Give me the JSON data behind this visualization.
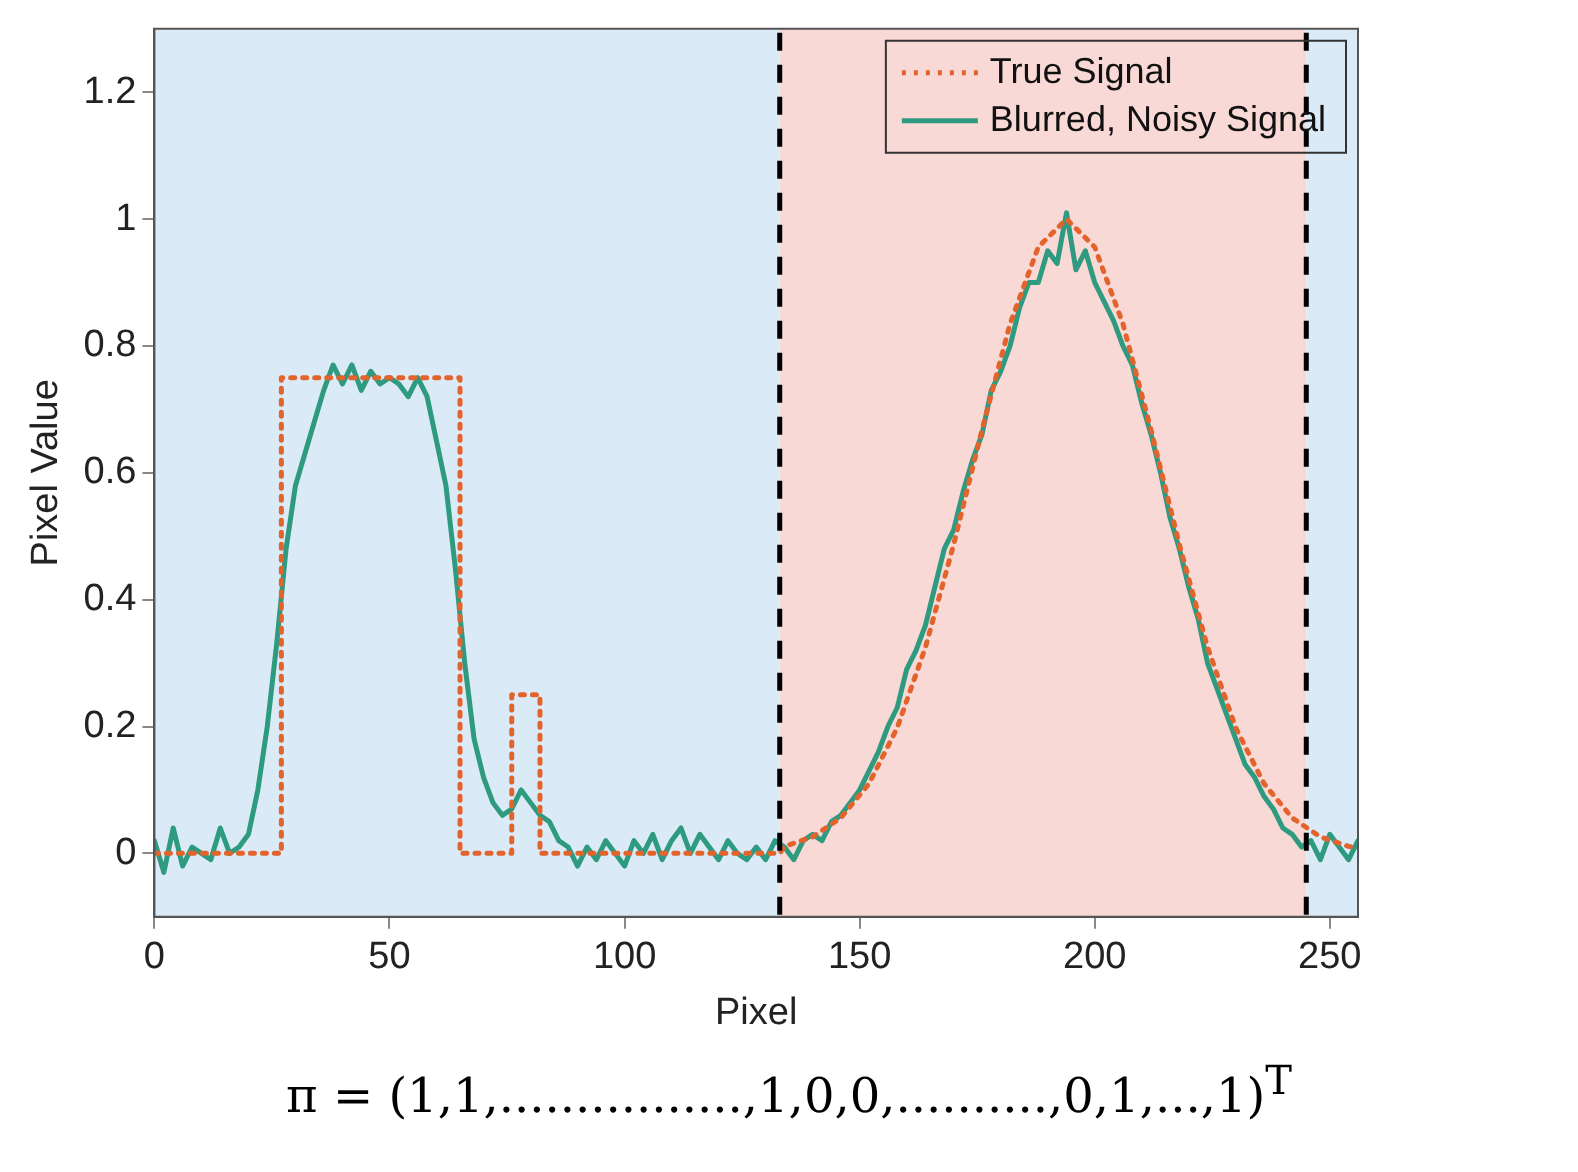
{
  "chart_data": {
    "type": "line",
    "xlabel": "Pixel",
    "ylabel": "Pixel Value",
    "xlim": [
      0,
      256
    ],
    "ylim": [
      -0.1,
      1.3
    ],
    "xticks": [
      0,
      50,
      100,
      150,
      200,
      250
    ],
    "yticks": [
      0,
      0.2,
      0.4,
      0.6,
      0.8,
      1,
      1.2
    ],
    "grid": false,
    "legend": "top right",
    "marker": "none",
    "series": [
      {
        "name": "True Signal",
        "color": "#e2632c",
        "line_style": "dotted",
        "x": [
          0,
          27,
          27,
          65,
          65,
          76,
          76,
          82,
          82,
          133,
          134,
          140,
          146,
          152,
          158,
          164,
          170,
          176,
          182,
          188,
          194,
          200,
          206,
          212,
          218,
          224,
          230,
          236,
          242,
          248,
          254,
          256
        ],
        "values": [
          0,
          0,
          0.75,
          0.75,
          0,
          0,
          0.25,
          0.25,
          0,
          0,
          0.011,
          0.026,
          0.056,
          0.11,
          0.198,
          0.325,
          0.487,
          0.667,
          0.835,
          0.956,
          1,
          0.956,
          0.835,
          0.667,
          0.487,
          0.325,
          0.198,
          0.11,
          0.056,
          0.026,
          0.011,
          0.008
        ]
      },
      {
        "name": "Blurred, Noisy Signal",
        "color": "#2e9a7f",
        "line_style": "solid",
        "x": [
          0,
          2,
          4,
          6,
          8,
          10,
          12,
          14,
          16,
          18,
          20,
          22,
          24,
          26,
          28,
          30,
          32,
          34,
          36,
          38,
          40,
          42,
          44,
          46,
          48,
          50,
          52,
          54,
          56,
          58,
          60,
          62,
          64,
          66,
          68,
          70,
          72,
          74,
          76,
          78,
          80,
          82,
          84,
          86,
          88,
          90,
          92,
          94,
          96,
          98,
          100,
          102,
          104,
          106,
          108,
          110,
          112,
          114,
          116,
          118,
          120,
          122,
          124,
          126,
          128,
          130,
          132,
          134,
          136,
          138,
          140,
          142,
          144,
          146,
          148,
          150,
          152,
          154,
          156,
          158,
          160,
          162,
          164,
          166,
          168,
          170,
          172,
          174,
          176,
          178,
          180,
          182,
          184,
          186,
          188,
          190,
          192,
          194,
          196,
          198,
          200,
          202,
          204,
          206,
          208,
          210,
          212,
          214,
          216,
          218,
          220,
          222,
          224,
          226,
          228,
          230,
          232,
          234,
          236,
          238,
          240,
          242,
          244,
          246,
          248,
          250,
          252,
          254,
          256
        ],
        "values": [
          0.02,
          -0.03,
          0.04,
          -0.02,
          0.01,
          0,
          -0.01,
          0.04,
          0,
          0.01,
          0.03,
          0.1,
          0.2,
          0.33,
          0.48,
          0.58,
          0.63,
          0.68,
          0.73,
          0.77,
          0.74,
          0.77,
          0.73,
          0.76,
          0.74,
          0.75,
          0.74,
          0.72,
          0.75,
          0.72,
          0.65,
          0.58,
          0.45,
          0.3,
          0.18,
          0.12,
          0.08,
          0.06,
          0.07,
          0.1,
          0.08,
          0.06,
          0.05,
          0.02,
          0.01,
          -0.02,
          0.01,
          -0.01,
          0.02,
          0,
          -0.02,
          0.02,
          0,
          0.03,
          -0.01,
          0.02,
          0.04,
          0,
          0.03,
          0.01,
          -0.01,
          0.02,
          0,
          -0.01,
          0.01,
          -0.01,
          0.02,
          0.01,
          -0.01,
          0.02,
          0.03,
          0.02,
          0.05,
          0.06,
          0.08,
          0.1,
          0.13,
          0.16,
          0.2,
          0.23,
          0.29,
          0.32,
          0.36,
          0.42,
          0.48,
          0.51,
          0.57,
          0.62,
          0.66,
          0.73,
          0.76,
          0.8,
          0.86,
          0.9,
          0.9,
          0.95,
          0.93,
          1.01,
          0.92,
          0.95,
          0.9,
          0.87,
          0.84,
          0.8,
          0.77,
          0.71,
          0.66,
          0.6,
          0.53,
          0.48,
          0.42,
          0.37,
          0.3,
          0.26,
          0.22,
          0.18,
          0.14,
          0.12,
          0.09,
          0.07,
          0.04,
          0.03,
          0.01,
          0.02,
          -0.01,
          0.03,
          0.01,
          -0.01,
          0.02
        ]
      }
    ],
    "bands": [
      {
        "axis": "x",
        "from": 0,
        "to": 133,
        "color": "#dbeaf7"
      },
      {
        "axis": "x",
        "from": 133,
        "to": 245,
        "color": "#f8d9d6"
      },
      {
        "axis": "x",
        "from": 245,
        "to": 256,
        "color": "#dbeaf7"
      }
    ],
    "ref_lines": [
      {
        "axis": "x",
        "value": 133,
        "color": "#000000",
        "line_style": "dashed"
      },
      {
        "axis": "x",
        "value": 245,
        "color": "#000000",
        "line_style": "dashed"
      }
    ],
    "annotations": [
      "π = (1,1,................,1,0,0,..........,0,1,...,1)$^{T}$"
    ]
  }
}
